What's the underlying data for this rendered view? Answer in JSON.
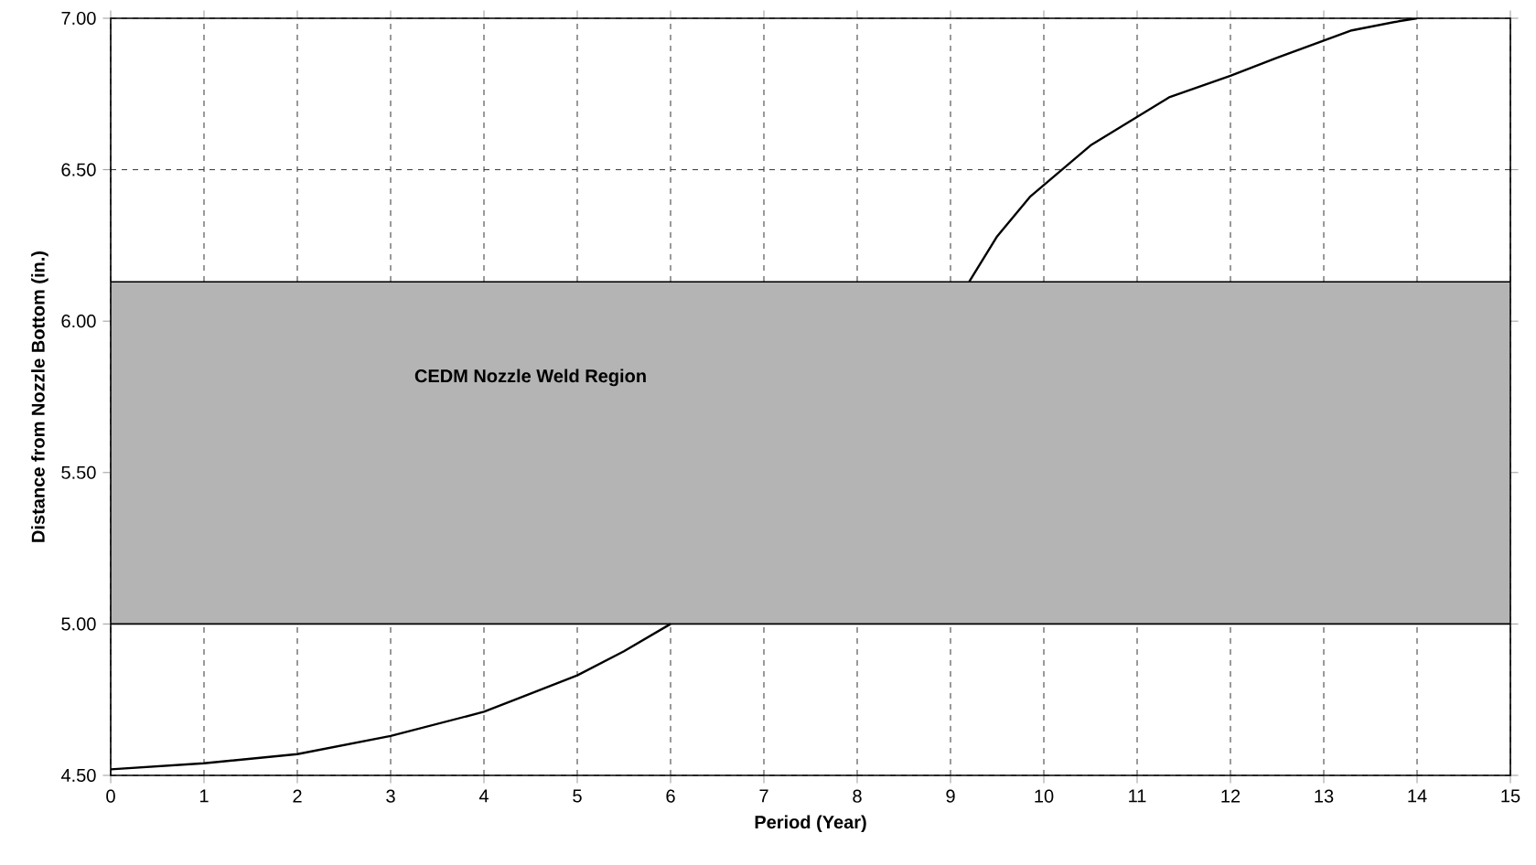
{
  "chart_data": {
    "type": "line",
    "xlabel": "Period (Year)",
    "ylabel": "Distance from Nozzle Bottom (in.)",
    "x": [
      0,
      1,
      2,
      3,
      4,
      5,
      5.5,
      6,
      7.5,
      9.2,
      9.5,
      9.85,
      10.5,
      11.35,
      12,
      12.5,
      13.3,
      13.8,
      14
    ],
    "series": [
      {
        "color": "#000000",
        "values": [
          4.52,
          4.54,
          4.57,
          4.63,
          4.71,
          4.83,
          4.91,
          5.0,
          null,
          6.13,
          6.28,
          6.41,
          6.58,
          6.74,
          6.81,
          6.87,
          6.96,
          6.99,
          7.0
        ]
      }
    ],
    "xlim": [
      0,
      15
    ],
    "xticks": [
      0,
      1,
      2,
      3,
      4,
      5,
      6,
      7,
      8,
      9,
      10,
      11,
      12,
      13,
      14,
      15
    ],
    "ylim": [
      4.5,
      7.0
    ],
    "yticks": [
      {
        "value": 4.5,
        "label": "4.50"
      },
      {
        "value": 5.0,
        "label": "5.00"
      },
      {
        "value": 5.5,
        "label": "5.50"
      },
      {
        "value": 6.0,
        "label": "6.00"
      },
      {
        "value": 6.5,
        "label": "6.50"
      },
      {
        "value": 7.0,
        "label": "7.00"
      }
    ],
    "bands": [
      {
        "axis": "y",
        "from": 5.0,
        "to": 6.13,
        "label": "CEDM Nozzle Weld Region",
        "color": "#b4b4b4"
      }
    ],
    "grid": true,
    "marker": "none",
    "line_style": "solid"
  }
}
